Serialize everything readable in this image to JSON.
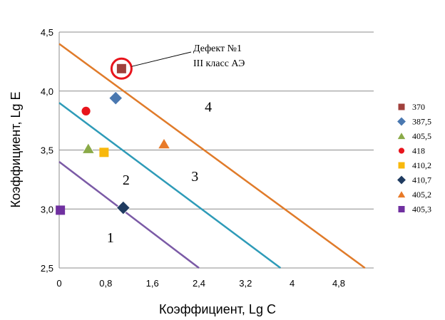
{
  "chart_data": {
    "type": "scatter",
    "xlabel": "Коэффициент, Lg C",
    "ylabel": "Коэффициент, Lg E",
    "xlim": [
      0,
      5.4
    ],
    "ylim": [
      2.5,
      4.5
    ],
    "xticks": [
      "0",
      "0,8",
      "1,6",
      "2,4",
      "3,2",
      "4",
      "4,8"
    ],
    "yticks": [
      "2,5",
      "3,0",
      "3,5",
      "4,0",
      "4,5"
    ],
    "grid": "horizontal",
    "legend_position": "right",
    "series": [
      {
        "name": "370",
        "marker": "square",
        "color": "#a0403c",
        "x": 1.07,
        "y": 4.19
      },
      {
        "name": "387,5",
        "marker": "diamond",
        "color": "#4a78b0",
        "x": 0.97,
        "y": 3.94
      },
      {
        "name": "405,5",
        "marker": "triangle",
        "color": "#8aaa48",
        "x": 0.5,
        "y": 3.51
      },
      {
        "name": "418",
        "marker": "circle",
        "color": "#e8141c",
        "x": 0.46,
        "y": 3.83
      },
      {
        "name": "410,2",
        "marker": "square",
        "color": "#f8b80c",
        "x": 0.77,
        "y": 3.48
      },
      {
        "name": "410,7",
        "marker": "diamond",
        "color": "#1f3b60",
        "x": 1.1,
        "y": 3.01
      },
      {
        "name": "405,2",
        "marker": "triangle",
        "color": "#e87a28",
        "x": 1.8,
        "y": 3.55
      },
      {
        "name": "405,3",
        "marker": "square",
        "color": "#7030a0",
        "x": 0.02,
        "y": 2.99
      }
    ],
    "lines": [
      {
        "color": "#7b5aa6",
        "x": [
          0,
          2.4
        ],
        "y": [
          3.4,
          2.5
        ]
      },
      {
        "color": "#2e9bb8",
        "x": [
          0,
          3.8
        ],
        "y": [
          3.9,
          2.5
        ]
      },
      {
        "color": "#e07b2a",
        "x": [
          0,
          5.25
        ],
        "y": [
          4.4,
          2.5
        ]
      }
    ],
    "regions": [
      {
        "label": "1",
        "x": 0.88,
        "y": 2.76
      },
      {
        "label": "2",
        "x": 1.15,
        "y": 3.25
      },
      {
        "label": "3",
        "x": 2.33,
        "y": 3.28
      },
      {
        "label": "4",
        "x": 2.56,
        "y": 3.87
      }
    ],
    "annotation": {
      "line1": "Дефект №1",
      "line2": "III класс АЭ",
      "target_series": "370"
    }
  }
}
